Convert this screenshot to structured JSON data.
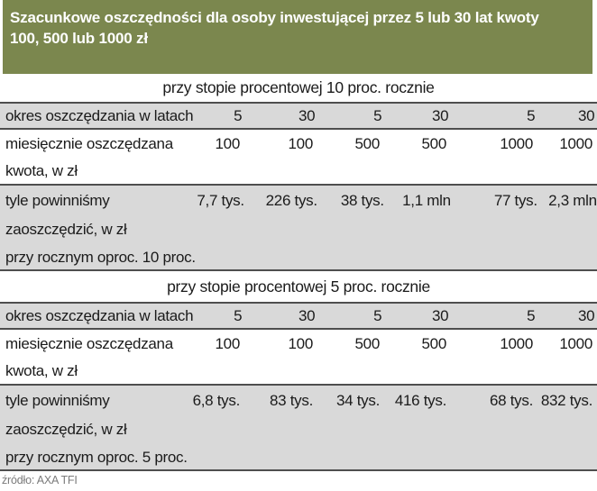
{
  "header": {
    "title_lines": [
      "Szacunkowe oszczędności dla osoby inwestującej przez 5 lub 30 lat kwoty",
      "100, 500 lub 1000 zł"
    ]
  },
  "colors": {
    "header_bg": "#7b874e",
    "row_gray": "#d9d9d9",
    "border": "#4e4e4e",
    "source_text": "#7b7b7b"
  },
  "sections": [
    {
      "title": "przy stopie procentowej 10 proc. rocznie",
      "rows": [
        {
          "label_lines": [
            "okres oszczędzania w latach"
          ],
          "values": [
            "5",
            "30",
            "5",
            "30",
            "5",
            "30"
          ]
        },
        {
          "label_lines": [
            "miesięcznie oszczędzana",
            "kwota, w zł"
          ],
          "values": [
            "100",
            "100",
            "500",
            "500",
            "1000",
            "1000"
          ]
        },
        {
          "label_lines": [
            "tyle powinniśmy",
            "zaoszczędzić, w zł",
            "przy rocznym oproc. 10 proc."
          ],
          "values": [
            "7,7 tys.",
            "226 tys.",
            "38 tys.",
            "1,1 mln",
            "77 tys.",
            "2,3 mln"
          ]
        }
      ]
    },
    {
      "title": "przy stopie procentowej 5 proc. rocznie",
      "rows": [
        {
          "label_lines": [
            "okres oszczędzania w latach"
          ],
          "values": [
            "5",
            "30",
            "5",
            "30",
            "5",
            "30"
          ]
        },
        {
          "label_lines": [
            "miesięcznie oszczędzana",
            "kwota, w zł"
          ],
          "values": [
            "100",
            "100",
            "500",
            "500",
            "1000",
            "1000"
          ]
        },
        {
          "label_lines": [
            "tyle powinniśmy",
            "zaoszczędzić, w zł",
            "przy rocznym oproc. 5 proc."
          ],
          "values": [
            "6,8 tys.",
            "83 tys.",
            "34 tys.",
            "416 tys.",
            "68 tys.",
            "832 tys."
          ]
        }
      ]
    }
  ],
  "source": "źródło: AXA TFI",
  "chart_data": {
    "type": "table",
    "title": "Szacunkowe oszczędności dla osoby inwestującej przez 5 lub 30 lat kwoty 100, 500 lub 1000 zł",
    "source": "źródło: AXA TFI",
    "tables": [
      {
        "section": "przy stopie procentowej 10 proc. rocznie",
        "row_headers": [
          "okres oszczędzania w latach",
          "miesięcznie oszczędzana kwota, w zł",
          "tyle powinniśmy zaoszczędzić, w zł przy rocznym oproc. 10 proc."
        ],
        "rows": [
          [
            "5",
            "30",
            "5",
            "30",
            "5",
            "30"
          ],
          [
            "100",
            "100",
            "500",
            "500",
            "1000",
            "1000"
          ],
          [
            "7,7 tys.",
            "226 tys.",
            "38 tys.",
            "1,1 mln",
            "77 tys.",
            "2,3 mln"
          ]
        ]
      },
      {
        "section": "przy stopie procentowej 5 proc. rocznie",
        "row_headers": [
          "okres oszczędzania w latach",
          "miesięcznie oszczędzana kwota, w zł",
          "tyle powinniśmy zaoszczędzić, w zł przy rocznym oproc. 5 proc."
        ],
        "rows": [
          [
            "5",
            "30",
            "5",
            "30",
            "5",
            "30"
          ],
          [
            "100",
            "100",
            "500",
            "500",
            "1000",
            "1000"
          ],
          [
            "6,8 tys.",
            "83 tys.",
            "34 tys.",
            "416 tys.",
            "68 tys.",
            "832 tys."
          ]
        ]
      }
    ]
  }
}
